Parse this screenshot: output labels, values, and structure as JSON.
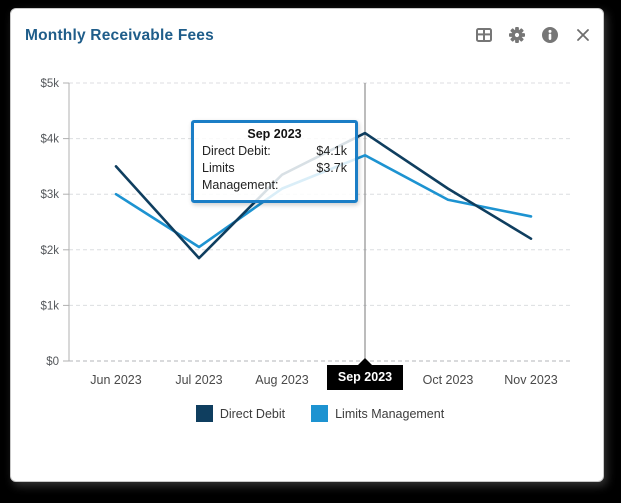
{
  "window": {
    "title": "Monthly Receivable Fees"
  },
  "toolbar": {
    "icons": [
      "table-icon",
      "settings-gear-icon",
      "info-icon",
      "close-icon"
    ]
  },
  "chart_data": {
    "type": "line",
    "categories": [
      "Jun 2023",
      "Jul 2023",
      "Aug 2023",
      "Sep 2023",
      "Oct 2023",
      "Nov 2023"
    ],
    "series": [
      {
        "name": "Direct Debit",
        "color": "#0f3e5f",
        "values_k": [
          3.5,
          1.85,
          3.35,
          4.1,
          3.1,
          2.2
        ]
      },
      {
        "name": "Limits Management",
        "color": "#1d93d1",
        "values_k": [
          3.0,
          2.05,
          3.1,
          3.7,
          2.9,
          2.6
        ]
      }
    ],
    "ylabel": "",
    "xlabel": "",
    "ylim_k": [
      0,
      5
    ],
    "ytick_labels": [
      "$0",
      "$1k",
      "$2k",
      "$3k",
      "$4k",
      "$5k"
    ],
    "grid": "horizontal-dashed",
    "legend_position": "bottom",
    "selected_category": "Sep 2023",
    "selected_index": 3
  },
  "tooltip": {
    "title": "Sep 2023",
    "rows": [
      {
        "label": "Direct Debit:",
        "value": "$4.1k"
      },
      {
        "label": "Limits Management:",
        "value": "$3.7k"
      }
    ]
  }
}
